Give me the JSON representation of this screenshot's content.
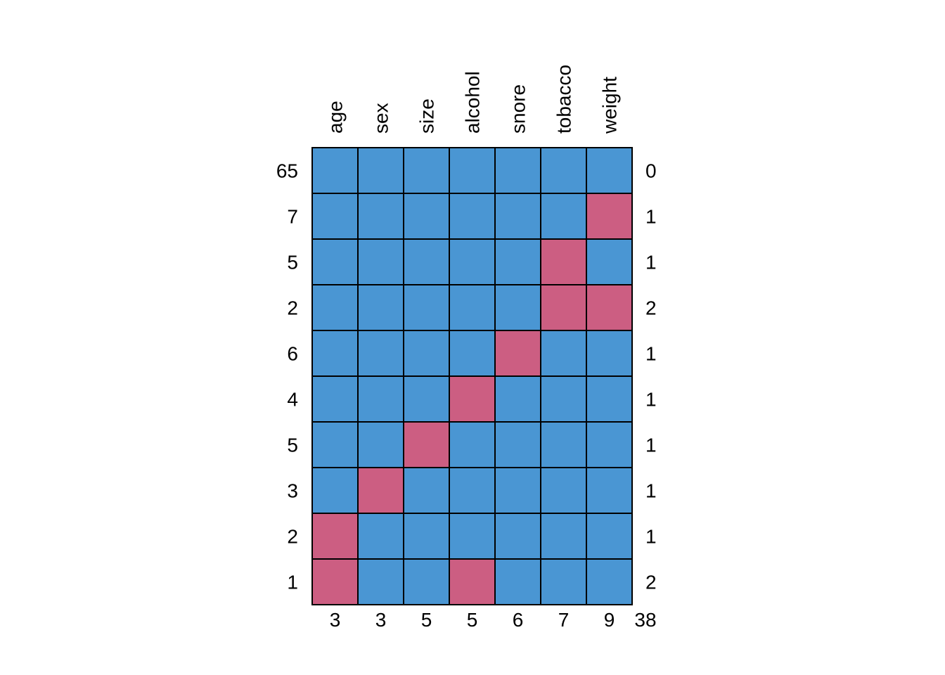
{
  "chart_data": {
    "type": "heatmap",
    "title": "",
    "variables": [
      "age",
      "sex",
      "size",
      "alcohol",
      "snore",
      "tobacco",
      "weight"
    ],
    "row_counts": [
      "65",
      "7",
      "5",
      "2",
      "6",
      "4",
      "5",
      "3",
      "2",
      "1"
    ],
    "row_missing_totals": [
      "0",
      "1",
      "1",
      "2",
      "1",
      "1",
      "1",
      "1",
      "1",
      "2"
    ],
    "column_missing_totals": [
      "3",
      "3",
      "5",
      "5",
      "6",
      "7",
      "9"
    ],
    "grand_total": "38",
    "pattern": [
      [
        1,
        1,
        1,
        1,
        1,
        1,
        1
      ],
      [
        1,
        1,
        1,
        1,
        1,
        1,
        0
      ],
      [
        1,
        1,
        1,
        1,
        1,
        0,
        1
      ],
      [
        1,
        1,
        1,
        1,
        1,
        0,
        0
      ],
      [
        1,
        1,
        1,
        1,
        0,
        1,
        1
      ],
      [
        1,
        1,
        1,
        0,
        1,
        1,
        1
      ],
      [
        1,
        1,
        0,
        1,
        1,
        1,
        1
      ],
      [
        1,
        0,
        1,
        1,
        1,
        1,
        1
      ],
      [
        0,
        1,
        1,
        1,
        1,
        1,
        1
      ],
      [
        0,
        1,
        1,
        0,
        1,
        1,
        1
      ]
    ],
    "legend": "none",
    "colors": {
      "observed": "#4A96D3",
      "missing": "#CC5E82",
      "grid": "#000000"
    }
  }
}
